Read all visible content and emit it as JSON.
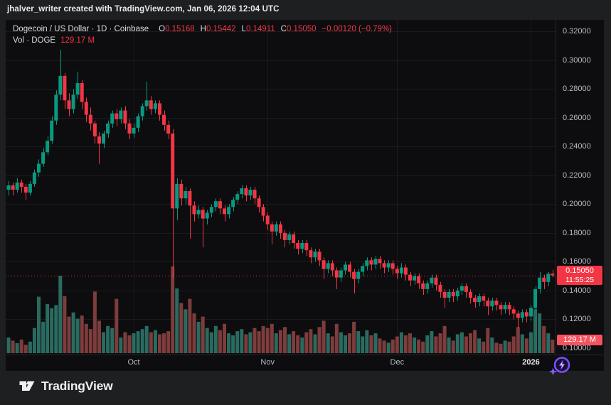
{
  "attribution": "jhalver_writer created with TradingView.com, Jan 06, 2026 12:04 UTC",
  "legend": {
    "symbol_title": "Dogecoin / US Dollar · 1D · Coinbase",
    "ohlc": [
      {
        "label": "O",
        "value": "0.15168"
      },
      {
        "label": "H",
        "value": "0.15442"
      },
      {
        "label": "L",
        "value": "0.14911"
      },
      {
        "label": "C",
        "value": "0.15050"
      }
    ],
    "change": "−0.00120 (−0.79%)",
    "volume_label": "Vol · DOGE",
    "volume_value": "129.17 M"
  },
  "price_scale": {
    "current_price_label": "0.15050",
    "countdown": "11:55:25",
    "volume_badge": "129.17 M"
  },
  "logo_text": "TradingView",
  "colors": {
    "up": "#089981",
    "down": "#f23645",
    "vol_up": "#2a6b60",
    "vol_down": "#7e3c3c",
    "accent_red": "#f23645",
    "volume_badge_bg": "#f7525f",
    "purple": "#7c4dff",
    "axis_text": "#b8bbc2",
    "panel_bg": "#0d0d0f"
  },
  "chart_data": {
    "type": "candlestick_with_volume",
    "title": "Dogecoin / US Dollar",
    "interval": "1D",
    "exchange": "Coinbase",
    "last": {
      "open": 0.15168,
      "high": 0.15442,
      "low": 0.14911,
      "close": 0.1505,
      "change": -0.0012,
      "change_pct": -0.79,
      "volume_text": "129.17 M"
    },
    "ylim": [
      0.1,
      0.32
    ],
    "y_tick_step": 0.02,
    "y_ticks": [
      "0.32000",
      "0.30000",
      "0.28000",
      "0.26000",
      "0.24000",
      "0.22000",
      "0.20000",
      "0.18000",
      "0.16000",
      "0.14000",
      "0.12000",
      "0.10000"
    ],
    "x_unit": "day",
    "x_ticks": [
      {
        "text": "Oct",
        "index": 29,
        "bold": false
      },
      {
        "text": "Nov",
        "index": 60,
        "bold": false
      },
      {
        "text": "Dec",
        "index": 90,
        "bold": false
      },
      {
        "text": "2026",
        "index": 121,
        "bold": true
      }
    ],
    "volume_unit": "M",
    "volume_scale_max": 830,
    "candles_format": [
      "open",
      "high",
      "low",
      "close",
      "volume_millions"
    ],
    "candles": [
      [
        0.21,
        0.216,
        0.206,
        0.213,
        150
      ],
      [
        0.213,
        0.215,
        0.206,
        0.21,
        120
      ],
      [
        0.21,
        0.218,
        0.208,
        0.215,
        95
      ],
      [
        0.215,
        0.217,
        0.208,
        0.212,
        130
      ],
      [
        0.212,
        0.214,
        0.203,
        0.208,
        80
      ],
      [
        0.208,
        0.216,
        0.206,
        0.214,
        110
      ],
      [
        0.214,
        0.224,
        0.212,
        0.222,
        240
      ],
      [
        0.222,
        0.231,
        0.219,
        0.228,
        540
      ],
      [
        0.228,
        0.239,
        0.226,
        0.236,
        300
      ],
      [
        0.236,
        0.247,
        0.234,
        0.244,
        470
      ],
      [
        0.244,
        0.261,
        0.242,
        0.258,
        430
      ],
      [
        0.258,
        0.279,
        0.255,
        0.276,
        460
      ],
      [
        0.276,
        0.307,
        0.272,
        0.289,
        740
      ],
      [
        0.289,
        0.291,
        0.266,
        0.272,
        545
      ],
      [
        0.272,
        0.277,
        0.261,
        0.266,
        350
      ],
      [
        0.266,
        0.28,
        0.263,
        0.276,
        390
      ],
      [
        0.276,
        0.292,
        0.273,
        0.284,
        330
      ],
      [
        0.284,
        0.286,
        0.266,
        0.271,
        360
      ],
      [
        0.271,
        0.274,
        0.257,
        0.262,
        280
      ],
      [
        0.262,
        0.267,
        0.251,
        0.256,
        230
      ],
      [
        0.256,
        0.258,
        0.242,
        0.247,
        590
      ],
      [
        0.247,
        0.25,
        0.228,
        0.242,
        310
      ],
      [
        0.242,
        0.251,
        0.239,
        0.249,
        200
      ],
      [
        0.249,
        0.258,
        0.246,
        0.256,
        260
      ],
      [
        0.256,
        0.265,
        0.253,
        0.263,
        240
      ],
      [
        0.263,
        0.266,
        0.254,
        0.259,
        520
      ],
      [
        0.259,
        0.267,
        0.256,
        0.265,
        150
      ],
      [
        0.265,
        0.268,
        0.252,
        0.256,
        200
      ],
      [
        0.256,
        0.259,
        0.245,
        0.249,
        170
      ],
      [
        0.249,
        0.256,
        0.246,
        0.253,
        190
      ],
      [
        0.253,
        0.263,
        0.25,
        0.261,
        210
      ],
      [
        0.261,
        0.27,
        0.258,
        0.268,
        230
      ],
      [
        0.268,
        0.285,
        0.265,
        0.272,
        260
      ],
      [
        0.272,
        0.275,
        0.262,
        0.266,
        200
      ],
      [
        0.266,
        0.272,
        0.263,
        0.27,
        220
      ],
      [
        0.27,
        0.272,
        0.258,
        0.262,
        180
      ],
      [
        0.262,
        0.265,
        0.251,
        0.255,
        190
      ],
      [
        0.255,
        0.258,
        0.245,
        0.249,
        210
      ],
      [
        0.249,
        0.252,
        0.149,
        0.197,
        830
      ],
      [
        0.197,
        0.218,
        0.189,
        0.214,
        620
      ],
      [
        0.214,
        0.217,
        0.199,
        0.204,
        480
      ],
      [
        0.204,
        0.212,
        0.2,
        0.209,
        420
      ],
      [
        0.209,
        0.211,
        0.176,
        0.199,
        520
      ],
      [
        0.199,
        0.202,
        0.188,
        0.193,
        380
      ],
      [
        0.193,
        0.199,
        0.19,
        0.196,
        300
      ],
      [
        0.196,
        0.198,
        0.17,
        0.19,
        350
      ],
      [
        0.19,
        0.196,
        0.186,
        0.194,
        240
      ],
      [
        0.194,
        0.2,
        0.191,
        0.198,
        200
      ],
      [
        0.198,
        0.204,
        0.195,
        0.202,
        260
      ],
      [
        0.202,
        0.204,
        0.193,
        0.197,
        220
      ],
      [
        0.197,
        0.199,
        0.188,
        0.193,
        280
      ],
      [
        0.193,
        0.2,
        0.19,
        0.198,
        190
      ],
      [
        0.198,
        0.205,
        0.195,
        0.203,
        170
      ],
      [
        0.203,
        0.209,
        0.2,
        0.207,
        210
      ],
      [
        0.207,
        0.213,
        0.204,
        0.211,
        230
      ],
      [
        0.211,
        0.213,
        0.202,
        0.206,
        180
      ],
      [
        0.206,
        0.212,
        0.203,
        0.21,
        200
      ],
      [
        0.21,
        0.212,
        0.2,
        0.204,
        240
      ],
      [
        0.204,
        0.206,
        0.194,
        0.198,
        210
      ],
      [
        0.198,
        0.2,
        0.188,
        0.192,
        260
      ],
      [
        0.192,
        0.194,
        0.182,
        0.186,
        240
      ],
      [
        0.186,
        0.188,
        0.172,
        0.181,
        280
      ],
      [
        0.181,
        0.188,
        0.178,
        0.186,
        190
      ],
      [
        0.186,
        0.188,
        0.176,
        0.18,
        220
      ],
      [
        0.18,
        0.182,
        0.17,
        0.175,
        250
      ],
      [
        0.175,
        0.181,
        0.172,
        0.179,
        180
      ],
      [
        0.179,
        0.181,
        0.169,
        0.173,
        210
      ],
      [
        0.173,
        0.175,
        0.165,
        0.169,
        170
      ],
      [
        0.169,
        0.175,
        0.166,
        0.173,
        150
      ],
      [
        0.173,
        0.175,
        0.164,
        0.168,
        200
      ],
      [
        0.168,
        0.17,
        0.159,
        0.163,
        230
      ],
      [
        0.163,
        0.169,
        0.16,
        0.167,
        180
      ],
      [
        0.167,
        0.169,
        0.157,
        0.161,
        250
      ],
      [
        0.161,
        0.163,
        0.148,
        0.155,
        310
      ],
      [
        0.155,
        0.161,
        0.152,
        0.159,
        190
      ],
      [
        0.159,
        0.161,
        0.15,
        0.154,
        160
      ],
      [
        0.154,
        0.156,
        0.141,
        0.149,
        280
      ],
      [
        0.149,
        0.156,
        0.146,
        0.154,
        200
      ],
      [
        0.154,
        0.16,
        0.151,
        0.158,
        170
      ],
      [
        0.158,
        0.16,
        0.149,
        0.153,
        190
      ],
      [
        0.153,
        0.155,
        0.138,
        0.148,
        300
      ],
      [
        0.148,
        0.155,
        0.145,
        0.153,
        210
      ],
      [
        0.153,
        0.159,
        0.15,
        0.157,
        160
      ],
      [
        0.157,
        0.163,
        0.154,
        0.161,
        220
      ],
      [
        0.161,
        0.163,
        0.154,
        0.158,
        170
      ],
      [
        0.158,
        0.164,
        0.155,
        0.162,
        190
      ],
      [
        0.162,
        0.164,
        0.155,
        0.159,
        140
      ],
      [
        0.159,
        0.161,
        0.152,
        0.156,
        120
      ],
      [
        0.156,
        0.161,
        0.153,
        0.159,
        100
      ],
      [
        0.159,
        0.161,
        0.151,
        0.155,
        130
      ],
      [
        0.155,
        0.157,
        0.148,
        0.152,
        160
      ],
      [
        0.152,
        0.159,
        0.149,
        0.156,
        200
      ],
      [
        0.156,
        0.158,
        0.147,
        0.151,
        170
      ],
      [
        0.151,
        0.153,
        0.143,
        0.147,
        190
      ],
      [
        0.147,
        0.152,
        0.144,
        0.15,
        150
      ],
      [
        0.15,
        0.152,
        0.141,
        0.145,
        130
      ],
      [
        0.145,
        0.147,
        0.137,
        0.141,
        110
      ],
      [
        0.141,
        0.147,
        0.138,
        0.145,
        170
      ],
      [
        0.145,
        0.151,
        0.142,
        0.149,
        210
      ],
      [
        0.149,
        0.151,
        0.14,
        0.144,
        160
      ],
      [
        0.144,
        0.146,
        0.135,
        0.139,
        190
      ],
      [
        0.139,
        0.141,
        0.128,
        0.135,
        260
      ],
      [
        0.135,
        0.141,
        0.132,
        0.139,
        150
      ],
      [
        0.139,
        0.141,
        0.132,
        0.136,
        120
      ],
      [
        0.136,
        0.142,
        0.133,
        0.14,
        180
      ],
      [
        0.14,
        0.145,
        0.137,
        0.143,
        200
      ],
      [
        0.143,
        0.145,
        0.135,
        0.139,
        160
      ],
      [
        0.139,
        0.141,
        0.131,
        0.135,
        190
      ],
      [
        0.135,
        0.137,
        0.128,
        0.132,
        220
      ],
      [
        0.132,
        0.138,
        0.129,
        0.136,
        140
      ],
      [
        0.136,
        0.138,
        0.129,
        0.133,
        110
      ],
      [
        0.133,
        0.135,
        0.123,
        0.129,
        240
      ],
      [
        0.129,
        0.135,
        0.126,
        0.133,
        150
      ],
      [
        0.133,
        0.135,
        0.126,
        0.13,
        100
      ],
      [
        0.13,
        0.132,
        0.123,
        0.127,
        90
      ],
      [
        0.127,
        0.132,
        0.124,
        0.13,
        120
      ],
      [
        0.13,
        0.132,
        0.123,
        0.127,
        110
      ],
      [
        0.127,
        0.129,
        0.12,
        0.124,
        160
      ],
      [
        0.124,
        0.126,
        0.114,
        0.121,
        250
      ],
      [
        0.121,
        0.127,
        0.118,
        0.125,
        180
      ],
      [
        0.125,
        0.127,
        0.118,
        0.122,
        140
      ],
      [
        0.122,
        0.13,
        0.119,
        0.128,
        200
      ],
      [
        0.128,
        0.143,
        0.126,
        0.141,
        420
      ],
      [
        0.141,
        0.153,
        0.138,
        0.149,
        380
      ],
      [
        0.149,
        0.151,
        0.141,
        0.146,
        260
      ],
      [
        0.146,
        0.153,
        0.143,
        0.1517,
        190
      ],
      [
        0.15168,
        0.15442,
        0.14911,
        0.1505,
        129.17
      ]
    ]
  }
}
